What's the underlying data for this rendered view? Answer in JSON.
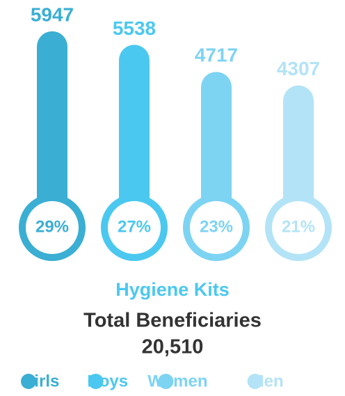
{
  "chart_data": {
    "type": "thermometer",
    "categories": [
      "Girls",
      "Boys",
      "Women",
      "Men"
    ],
    "values": [
      5947,
      5538,
      4717,
      4307
    ],
    "shares": [
      29,
      27,
      23,
      21
    ],
    "share_labels": [
      "29%",
      "27%",
      "23%",
      "21%"
    ],
    "colors": [
      "#3aaed3",
      "#4bc8ef",
      "#7dd3f2",
      "#b3e3f6"
    ],
    "title": "Hygiene Kits",
    "subtitle": "Total Beneficiaries",
    "total": 20510,
    "total_label": "20,510"
  }
}
